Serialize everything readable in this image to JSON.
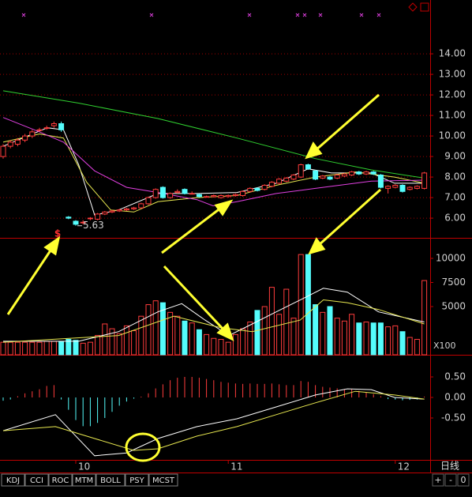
{
  "chart_data": [
    {
      "type": "candlestick",
      "open": [
        9.0,
        9.5,
        9.6,
        9.8,
        10.0,
        10.3,
        10.4,
        10.5,
        10.6,
        6.05,
        5.85,
        5.8,
        6.0,
        5.95,
        6.2,
        6.3,
        6.35,
        6.4,
        6.45,
        6.5,
        6.7,
        7.0,
        7.5,
        7.0,
        7.25,
        7.4,
        7.2,
        7.15,
        7.05,
        7.05,
        7.0,
        7.05,
        7.1,
        7.1,
        7.3,
        7.45,
        7.4,
        7.55,
        7.7,
        7.8,
        7.9,
        8.0,
        8.6,
        8.3,
        7.95,
        8.0,
        7.95,
        8.05,
        8.1,
        8.25,
        8.15,
        8.25,
        8.1,
        7.45,
        7.5,
        7.6,
        7.4,
        7.45,
        7.45
      ],
      "high": [
        9.6,
        9.8,
        9.9,
        10.1,
        10.3,
        10.4,
        10.5,
        10.7,
        10.7,
        6.1,
        5.9,
        5.9,
        6.05,
        6.25,
        6.35,
        6.4,
        6.45,
        6.5,
        6.55,
        6.75,
        7.05,
        7.45,
        7.55,
        7.25,
        7.4,
        7.45,
        7.3,
        7.2,
        7.1,
        7.15,
        7.15,
        7.15,
        7.2,
        7.35,
        7.5,
        7.5,
        7.65,
        7.8,
        7.95,
        8.0,
        8.15,
        8.65,
        8.65,
        8.35,
        8.1,
        8.05,
        8.15,
        8.2,
        8.3,
        8.3,
        8.3,
        8.3,
        8.15,
        7.6,
        7.65,
        7.65,
        7.55,
        7.6,
        8.25
      ],
      "low": [
        8.9,
        9.4,
        9.5,
        9.7,
        9.9,
        10.2,
        10.3,
        10.4,
        10.2,
        5.95,
        5.63,
        5.7,
        5.9,
        5.9,
        6.15,
        6.25,
        6.3,
        6.35,
        6.4,
        6.45,
        6.65,
        6.95,
        6.95,
        6.95,
        7.2,
        7.15,
        7.15,
        7.0,
        7.0,
        7.0,
        6.95,
        7.0,
        7.05,
        7.05,
        7.25,
        7.3,
        7.35,
        7.5,
        7.65,
        7.75,
        7.85,
        7.95,
        8.35,
        7.85,
        7.9,
        7.85,
        7.9,
        8.0,
        8.05,
        8.1,
        8.1,
        8.1,
        7.45,
        7.2,
        7.45,
        7.25,
        7.35,
        7.4,
        7.4
      ],
      "close": [
        9.5,
        9.7,
        9.8,
        10.0,
        10.2,
        10.3,
        10.4,
        10.6,
        10.3,
        6.0,
        5.7,
        5.8,
        6.0,
        6.2,
        6.3,
        6.35,
        6.4,
        6.45,
        6.5,
        6.7,
        7.0,
        7.4,
        7.0,
        7.2,
        7.3,
        7.2,
        7.2,
        7.05,
        7.05,
        7.1,
        7.1,
        7.1,
        7.15,
        7.3,
        7.45,
        7.35,
        7.6,
        7.75,
        7.9,
        7.95,
        8.1,
        8.6,
        8.4,
        7.9,
        8.05,
        7.9,
        8.1,
        8.15,
        8.25,
        8.15,
        8.25,
        8.15,
        7.5,
        7.55,
        7.6,
        7.3,
        7.5,
        7.55,
        8.2
      ],
      "up_color": "#ff3c3c",
      "down_color": "#54fcfc",
      "ylim": [
        5.08,
        16.62
      ],
      "yticks": [
        {
          "value": 6,
          "label": "6.00"
        },
        {
          "value": 7,
          "label": "7.00"
        },
        {
          "value": 8,
          "label": "8.00"
        },
        {
          "value": 9,
          "label": "9.00"
        },
        {
          "value": 10,
          "label": "10.00"
        },
        {
          "value": 11,
          "label": "11.00"
        },
        {
          "value": 12,
          "label": "12.00"
        },
        {
          "value": 13,
          "label": "13.00"
        },
        {
          "value": 14,
          "label": "14.00"
        }
      ],
      "grid": true,
      "low_label": "5.63",
      "rights_mark": "$",
      "lines": [
        {
          "color": "#ffffff",
          "x": [
            0,
            6.1,
            8.3,
            10.4,
            12.6,
            15.9,
            21.3,
            26.7,
            32.2,
            37.6,
            42,
            45.2,
            50.7,
            53.9,
            58
          ],
          "values": [
            9.5,
            10.4,
            10.3,
            8.6,
            6.15,
            6.4,
            7.2,
            7.2,
            7.25,
            7.7,
            8.4,
            8.2,
            8.2,
            7.7,
            7.7
          ]
        },
        {
          "color": "#e8e850",
          "x": [
            0,
            5,
            8.3,
            11.5,
            14.8,
            18,
            21.3,
            26.7,
            32.2,
            37.6,
            43,
            48.5,
            53.9,
            58
          ],
          "values": [
            9.7,
            10.1,
            9.9,
            7.75,
            6.4,
            6.3,
            6.8,
            7.0,
            7.1,
            7.6,
            8.0,
            8.25,
            8.0,
            7.7
          ]
        },
        {
          "color": "#e040e0",
          "x": [
            0,
            5,
            8.3,
            12.6,
            17,
            21.3,
            26.7,
            28.9,
            32.2,
            37.6,
            43,
            50.7,
            58
          ],
          "values": [
            10.9,
            10.2,
            9.7,
            8.3,
            7.5,
            7.25,
            6.9,
            6.6,
            6.8,
            7.2,
            7.45,
            7.8,
            7.85
          ]
        },
        {
          "color": "#30d030",
          "x": [
            0,
            10.4,
            21.3,
            32.2,
            43,
            50.7,
            58
          ],
          "values": [
            12.2,
            11.6,
            10.85,
            9.9,
            8.9,
            8.35,
            7.95
          ]
        }
      ]
    },
    {
      "type": "bar",
      "values": [
        1300,
        1300,
        1300,
        1300,
        1300,
        1300,
        1400,
        1400,
        1400,
        1600,
        1500,
        1200,
        1300,
        2000,
        3200,
        2700,
        2200,
        3000,
        2500,
        4000,
        5200,
        5600,
        5400,
        4400,
        4000,
        3500,
        3300,
        2600,
        2100,
        1700,
        1600,
        1300,
        2100,
        2700,
        3400,
        4600,
        5000,
        7000,
        4200,
        6800,
        3800,
        10400,
        10400,
        5200,
        4400,
        5000,
        3800,
        3500,
        4200,
        3300,
        3400,
        3300,
        3300,
        2900,
        3000,
        2400,
        1800,
        1600,
        7700
      ],
      "ylim": [
        0,
        12050
      ],
      "yticks": [
        5000,
        7500,
        10000
      ],
      "unit_label": "X100",
      "lines": [
        {
          "color": "#ffffff",
          "x": [
            0,
            10.4,
            15.9,
            21.3,
            24.6,
            27.8,
            31.1,
            34.3,
            37.6,
            42,
            44.1,
            47.4,
            51.7,
            58
          ],
          "values": [
            1400,
            1400,
            2400,
            4450,
            5300,
            3600,
            2000,
            3200,
            4450,
            6100,
            6900,
            6500,
            4450,
            3400
          ]
        },
        {
          "color": "#e8e850",
          "x": [
            0,
            15.9,
            23.5,
            30,
            34.3,
            40.9,
            44.1,
            47.4,
            51.7,
            58
          ],
          "values": [
            1300,
            2000,
            4000,
            2800,
            2400,
            3600,
            5700,
            5400,
            4700,
            3200
          ]
        }
      ]
    },
    {
      "type": "macd",
      "values": [
        -0.08,
        -0.05,
        0.03,
        0.1,
        0.15,
        0.2,
        0.28,
        0.3,
        -0.05,
        -0.3,
        -0.55,
        -0.7,
        -0.7,
        -0.62,
        -0.5,
        -0.35,
        -0.2,
        -0.1,
        -0.03,
        0.02,
        0.1,
        0.22,
        0.32,
        0.42,
        0.48,
        0.5,
        0.5,
        0.48,
        0.45,
        0.42,
        0.38,
        0.36,
        0.34,
        0.33,
        0.34,
        0.33,
        0.33,
        0.34,
        0.32,
        0.3,
        0.3,
        0.4,
        0.38,
        0.3,
        0.26,
        0.24,
        0.22,
        0.2,
        0.2,
        0.16,
        0.12,
        0.08,
        0.03,
        -0.04,
        -0.05,
        -0.07,
        -0.06,
        -0.05,
        0.02
      ],
      "ylim": [
        -1.52,
        1.02
      ],
      "yticks": [
        {
          "value": -0.5,
          "label": "-0.50"
        },
        {
          "value": 0,
          "label": "0.00"
        },
        {
          "value": 0.5,
          "label": "0.50"
        }
      ],
      "xticks": [
        {
          "value": 10,
          "label": "10"
        },
        {
          "value": 31,
          "label": "11"
        },
        {
          "value": 54,
          "label": "12"
        }
      ],
      "lines": [
        {
          "color": "#ffffff",
          "x": [
            0,
            7.2,
            12.6,
            17,
            21.3,
            26.7,
            32.2,
            37.6,
            43,
            47.4,
            50.7,
            53.9,
            58
          ],
          "values": [
            -0.81,
            -0.42,
            -1.42,
            -1.35,
            -1.0,
            -0.71,
            -0.52,
            -0.23,
            0.06,
            0.21,
            0.19,
            0,
            -0.04
          ]
        },
        {
          "color": "#e8e850",
          "x": [
            0,
            7.2,
            12.6,
            18,
            21.3,
            26.7,
            32.2,
            37.6,
            43,
            48.5,
            53.9,
            58
          ],
          "values": [
            -0.81,
            -0.71,
            -1.0,
            -1.29,
            -1.25,
            -0.94,
            -0.71,
            -0.42,
            -0.13,
            0.15,
            0.06,
            -0.04
          ]
        }
      ]
    }
  ],
  "ui": {
    "tabs": [
      "KDJ",
      "CCI",
      "ROC",
      "MTM",
      "BOLL",
      "PSY",
      "MCST"
    ],
    "period": "日线",
    "buttons": [
      "+",
      "-",
      "0"
    ]
  }
}
